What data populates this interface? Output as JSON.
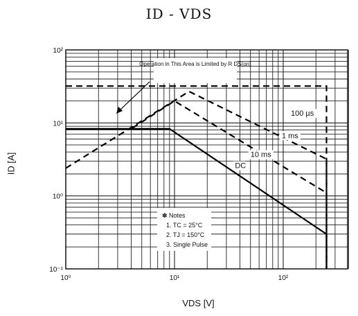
{
  "chart_data": {
    "type": "line",
    "title": "ID - VDS",
    "xlabel": "VDS [V]",
    "ylabel": "ID [A]",
    "xscale": "log",
    "yscale": "log",
    "xlim": [
      1,
      500
    ],
    "ylim": [
      0.1,
      100
    ],
    "grid": true,
    "x_tick_labels": [
      "10⁰",
      "10¹",
      "10²"
    ],
    "y_tick_labels": [
      "10⁻¹",
      "10⁰",
      "10¹",
      "10²"
    ],
    "series": [
      {
        "name": "100 µs",
        "style": "dashed",
        "x": [
          1,
          250,
          250
        ],
        "y": [
          32,
          32,
          0.1
        ]
      },
      {
        "name": "1 ms",
        "style": "dashed",
        "x": [
          1,
          13.6,
          250,
          250
        ],
        "y": [
          2.4,
          27,
          3.2,
          0.1
        ]
      },
      {
        "name": "10 ms",
        "style": "dashed",
        "x": [
          4.1,
          10,
          250,
          250
        ],
        "y": [
          8.5,
          20,
          1.1,
          0.1
        ]
      },
      {
        "name": "DC",
        "style": "solid",
        "x": [
          1,
          9,
          250,
          250
        ],
        "y": [
          8.3,
          8.3,
          0.3,
          0.1
        ]
      }
    ],
    "annotations": [
      {
        "text": "Operation in This Area is Limited by R DS(on)"
      },
      {
        "text": "✽ Notes"
      },
      {
        "text": "1. TC = 25°C"
      },
      {
        "text": "2. TJ = 150°C"
      },
      {
        "text": "3. Single Pulse"
      }
    ],
    "colors": {
      "curve": "#000000",
      "grid": "#222222",
      "background": "#ffffff"
    }
  }
}
